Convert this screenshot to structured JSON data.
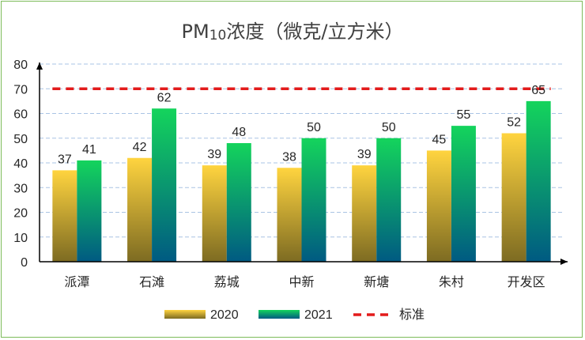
{
  "chart_data": {
    "type": "bar",
    "title": "PM10浓度（微克/立方米）",
    "title_prefix": "PM",
    "title_sub": "10",
    "title_suffix": "浓度（微克/立方米）",
    "categories": [
      "派潭",
      "石滩",
      "荔城",
      "中新",
      "新塘",
      "朱村",
      "开发区"
    ],
    "series": [
      {
        "name": "2020",
        "values": [
          37,
          42,
          39,
          38,
          39,
          45,
          52
        ],
        "color_top": "#ffd43f",
        "color_bottom": "#7d6b22"
      },
      {
        "name": "2021",
        "values": [
          41,
          62,
          48,
          50,
          50,
          55,
          65
        ],
        "color_top": "#14d45c",
        "color_bottom": "#005a82"
      }
    ],
    "reference_line": {
      "name": "标准",
      "value": 70,
      "color": "#e31b1b"
    },
    "ylim": [
      0,
      80
    ],
    "yticks": [
      0,
      10,
      20,
      30,
      40,
      50,
      60,
      70,
      80
    ],
    "grid": true,
    "legend_position": "bottom",
    "xlabel": "",
    "ylabel": ""
  }
}
